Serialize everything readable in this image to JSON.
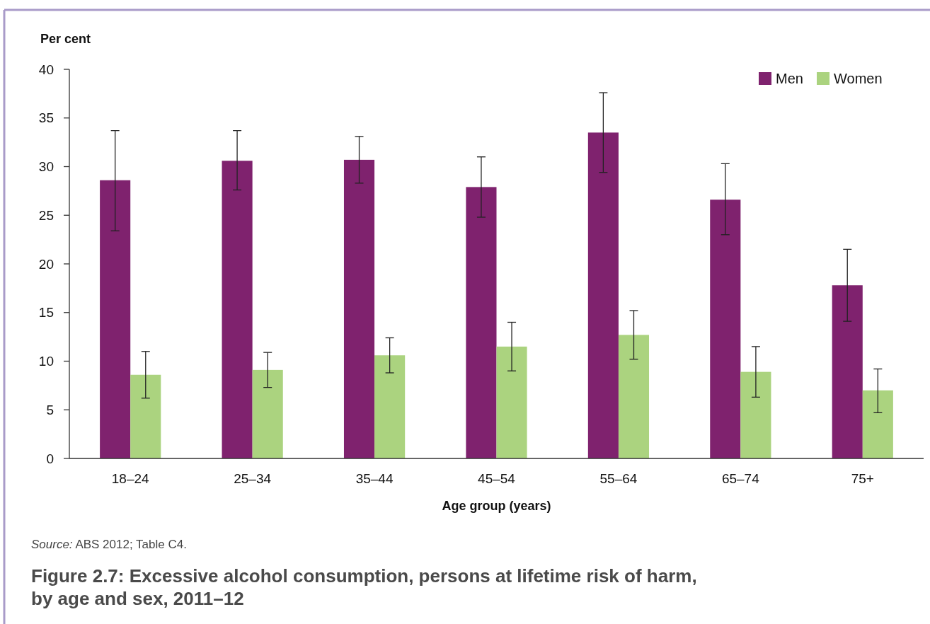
{
  "chart_data": {
    "type": "bar",
    "title": "Figure 2.7: Excessive alcohol consumption, persons at lifetime risk of harm, by age and sex, 2011–12",
    "xlabel": "Age group (years)",
    "ylabel": "Per cent",
    "annotations": [
      "Source: ABS 2012; Table C4."
    ],
    "categories": [
      "18–24",
      "25–34",
      "35–44",
      "45–54",
      "55–64",
      "65–74",
      "75+"
    ],
    "series": [
      {
        "name": "Men",
        "color": "#7f226e",
        "values": [
          28.6,
          30.6,
          30.7,
          27.9,
          33.5,
          26.6,
          17.8
        ],
        "errors": [
          [
            23.4,
            33.7
          ],
          [
            27.6,
            33.7
          ],
          [
            28.3,
            33.1
          ],
          [
            24.8,
            31.0
          ],
          [
            29.4,
            37.6
          ],
          [
            23.0,
            30.3
          ],
          [
            14.1,
            21.5
          ]
        ]
      },
      {
        "name": "Women",
        "color": "#abd37f",
        "values": [
          8.6,
          9.1,
          10.6,
          11.5,
          12.7,
          8.9,
          7.0
        ],
        "errors": [
          [
            6.2,
            11.0
          ],
          [
            7.3,
            10.9
          ],
          [
            8.8,
            12.4
          ],
          [
            9.0,
            14.0
          ],
          [
            10.2,
            15.2
          ],
          [
            6.3,
            11.5
          ],
          [
            4.7,
            9.2
          ]
        ]
      }
    ],
    "ylim": [
      0,
      40
    ],
    "yticks": [
      0,
      5,
      10,
      15,
      20,
      25,
      30,
      35,
      40
    ],
    "grid": false,
    "legend": "top right"
  }
}
